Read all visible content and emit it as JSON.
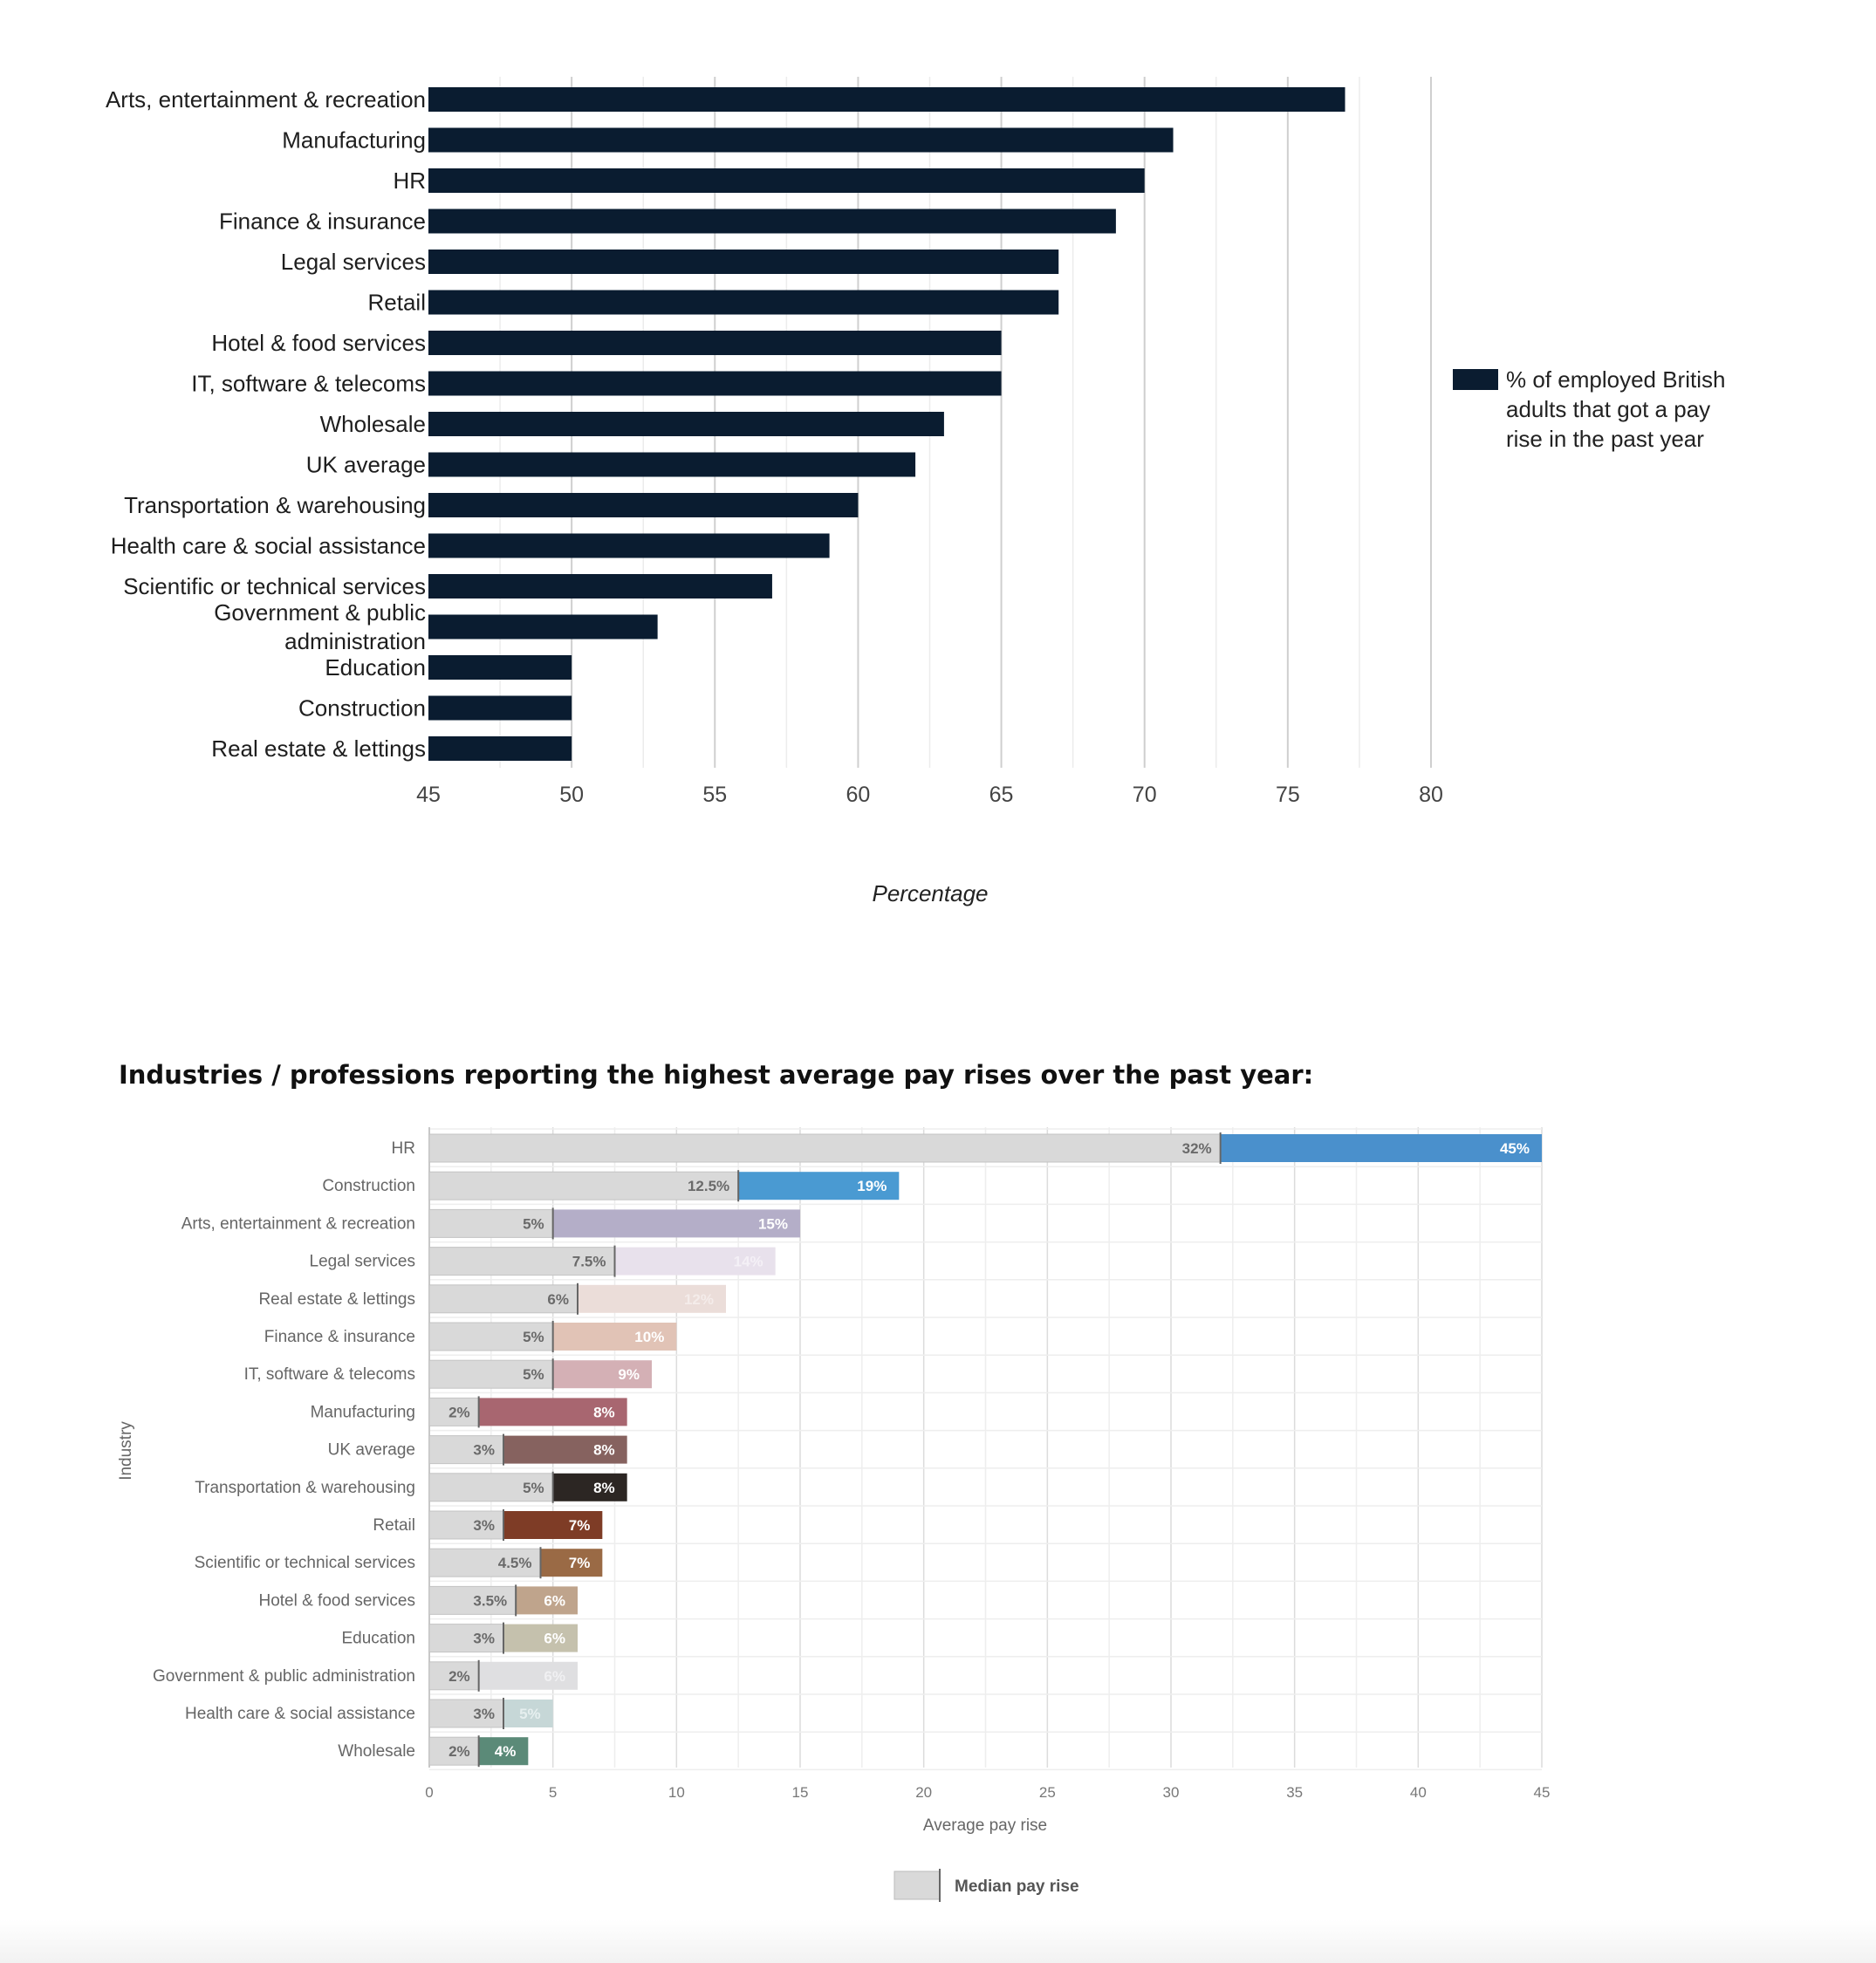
{
  "chart_data": [
    {
      "type": "bar",
      "orientation": "horizontal",
      "categories": [
        "Arts, entertainment & recreation",
        "Manufacturing",
        "HR",
        "Finance & insurance",
        "Legal services",
        "Retail",
        "Hotel & food services",
        "IT, software & telecoms",
        "Wholesale",
        "UK average",
        "Transportation & warehousing",
        "Health care & social assistance",
        "Scientific or technical services",
        "Government & public administration",
        "Education",
        "Construction",
        "Real estate & lettings"
      ],
      "values": [
        77,
        71,
        70,
        69,
        67,
        67,
        65,
        65,
        63,
        62,
        60,
        59,
        57,
        53,
        50,
        50,
        50
      ],
      "xlim": [
        45,
        80
      ],
      "xticks": [
        "45",
        "50",
        "55",
        "60",
        "65",
        "70",
        "75",
        "80"
      ],
      "xlabel": "Percentage",
      "legend": "% of employed British adults that got a pay rise in the past year",
      "legend_position": "right",
      "bar_color": "#0a1c30",
      "grid": true
    },
    {
      "type": "bar",
      "orientation": "horizontal",
      "title": "Industries / professions reporting the highest average pay rises over the past year:",
      "categories": [
        "HR",
        "Construction",
        "Arts, entertainment & recreation",
        "Legal services",
        "Real estate & lettings",
        "Finance & insurance",
        "IT, software & telecoms",
        "Manufacturing",
        "UK average",
        "Transportation & warehousing",
        "Retail",
        "Scientific or technical services",
        "Hotel & food services",
        "Education",
        "Government & public administration",
        "Health care & social assistance",
        "Wholesale"
      ],
      "series": [
        {
          "name": "Median pay rise",
          "values": [
            32,
            12.5,
            5,
            7.5,
            6,
            5,
            5,
            2,
            3,
            5,
            3,
            4.5,
            3.5,
            3,
            2,
            3,
            2
          ],
          "labels": [
            "32%",
            "12.5%",
            "5%",
            "7.5%",
            "6%",
            "5%",
            "5%",
            "2%",
            "3%",
            "5%",
            "3%",
            "4.5%",
            "3.5%",
            "3%",
            "2%",
            "3%",
            "2%"
          ]
        },
        {
          "name": "Average pay rise",
          "values": [
            45,
            19,
            15,
            14,
            12,
            10,
            9,
            8,
            8,
            8,
            7,
            7,
            6,
            6,
            6,
            5,
            4
          ],
          "labels": [
            "45%",
            "19%",
            "15%",
            "14%",
            "12%",
            "10%",
            "9%",
            "8%",
            "8%",
            "8%",
            "7%",
            "7%",
            "6%",
            "6%",
            "6%",
            "5%",
            "4%"
          ]
        }
      ],
      "bar_colors": [
        "#4a90cc",
        "#4a9ad2",
        "#b4aec8",
        "#e8e1ec",
        "#ebddd9",
        "#e1c3b6",
        "#d4b0b5",
        "#a86670",
        "#86625f",
        "#2c2623",
        "#7e3c26",
        "#9a6a45",
        "#bfa48c",
        "#c5c1ad",
        "#dfdfe1",
        "#c6d7d7",
        "#5b8a78"
      ],
      "label_colors": [
        "#ffffff",
        "#ffffff",
        "#ffffff",
        "#f4f0f6",
        "#f4ecea",
        "#ffffff",
        "#ffffff",
        "#ffffff",
        "#ffffff",
        "#ffffff",
        "#ffffff",
        "#ffffff",
        "#ffffff",
        "#ffffff",
        "#f0f0f2",
        "#e6efef",
        "#ffffff"
      ],
      "median_color": "#d9d9d9",
      "xlim": [
        0,
        45
      ],
      "xticks": [
        "0",
        "5",
        "10",
        "15",
        "20",
        "25",
        "30",
        "35",
        "40",
        "45"
      ],
      "xlabel": "Average pay rise",
      "ylabel": "Industry",
      "legend": "Median pay rise",
      "legend_position": "bottom",
      "grid": true
    }
  ]
}
